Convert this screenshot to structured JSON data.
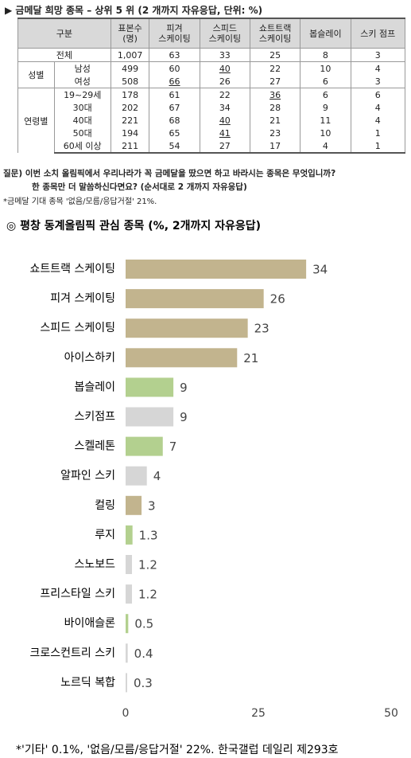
{
  "table": {
    "title": "▶ 금메달 희망 종목 – 상위 5 위 (2 개까지 자유응답, 단위: %)",
    "header": [
      "구분",
      "표본수\n(명)",
      "피겨\n스케이팅",
      "스피드\n스케이팅",
      "쇼트트랙\n스케이팅",
      "봅슬레이",
      "스키 점프"
    ],
    "groups": [
      {
        "label": "전체",
        "rows": [
          {
            "cells": [
              "1,007",
              "63",
              "33",
              "25",
              "8",
              "3"
            ]
          }
        ]
      },
      {
        "label": "성별",
        "rows": [
          {
            "label": "남성",
            "cells": [
              "499",
              "60",
              {
                "text": "40",
                "underline": true
              },
              "22",
              "10",
              "4"
            ]
          },
          {
            "label": "여성",
            "cells": [
              "508",
              {
                "text": "66",
                "underline": true
              },
              "26",
              "27",
              "6",
              "3"
            ]
          }
        ]
      },
      {
        "label": "연령별",
        "rows": [
          {
            "label": "19~29세",
            "cells": [
              "178",
              "61",
              "22",
              {
                "text": "36",
                "underline": true
              },
              "6",
              "6"
            ]
          },
          {
            "label": "30대",
            "cells": [
              "202",
              "67",
              "34",
              "28",
              "9",
              "4"
            ]
          },
          {
            "label": "40대",
            "cells": [
              "221",
              "68",
              {
                "text": "40",
                "underline": true
              },
              "21",
              "11",
              "4"
            ]
          },
          {
            "label": "50대",
            "cells": [
              "194",
              "65",
              {
                "text": "41",
                "underline": true
              },
              "23",
              "10",
              "1"
            ]
          },
          {
            "label": "60세 이상",
            "cells": [
              "211",
              "54",
              "27",
              "17",
              "4",
              "1"
            ]
          }
        ]
      }
    ],
    "question_label": "질문)",
    "question": [
      "이번 소치 올림픽에서 우리나라가 꼭 금메달을 땄으면 하고 바라시는 종목은 무엇입니까?",
      "한 종목만 더 말씀하신다면요? (순서대로 2 개까지 자유응답)"
    ],
    "note": "*금메달 기대 종목 '없음/모름/응답거절' 21%."
  },
  "chart_data": {
    "type": "barh",
    "title": "◎ 평창 동계올림픽 관심 종목 (%, 2개까지 자유응답)",
    "categories": [
      "쇼트트랙 스케이팅",
      "피겨 스케이팅",
      "스피드 스케이팅",
      "아이스하키",
      "봅슬레이",
      "스키점프",
      "스켈레톤",
      "알파인 스키",
      "컬링",
      "루지",
      "스노보드",
      "프리스타일 스키",
      "바이애슬론",
      "크로스컨트리 스키",
      "노르딕 복합"
    ],
    "values": [
      34,
      26,
      23,
      21,
      9,
      9,
      7,
      4,
      3,
      1.3,
      1.2,
      1.2,
      0.5,
      0.4,
      0.3
    ],
    "colors": [
      "#c2b48e",
      "#c2b48e",
      "#c2b48e",
      "#c2b48e",
      "#b3d08f",
      "#d6d6d6",
      "#b3d08f",
      "#d6d6d6",
      "#c2b48e",
      "#b3d08f",
      "#d6d6d6",
      "#d6d6d6",
      "#b3d08f",
      "#d6d6d6",
      "#d6d6d6"
    ],
    "xlim": [
      0,
      50
    ],
    "xticks": [
      0,
      25,
      50
    ],
    "footnote": "*'기타' 0.1%, '없음/모름/응답거절' 22%. 한국갤럽 데일리 제293호"
  }
}
